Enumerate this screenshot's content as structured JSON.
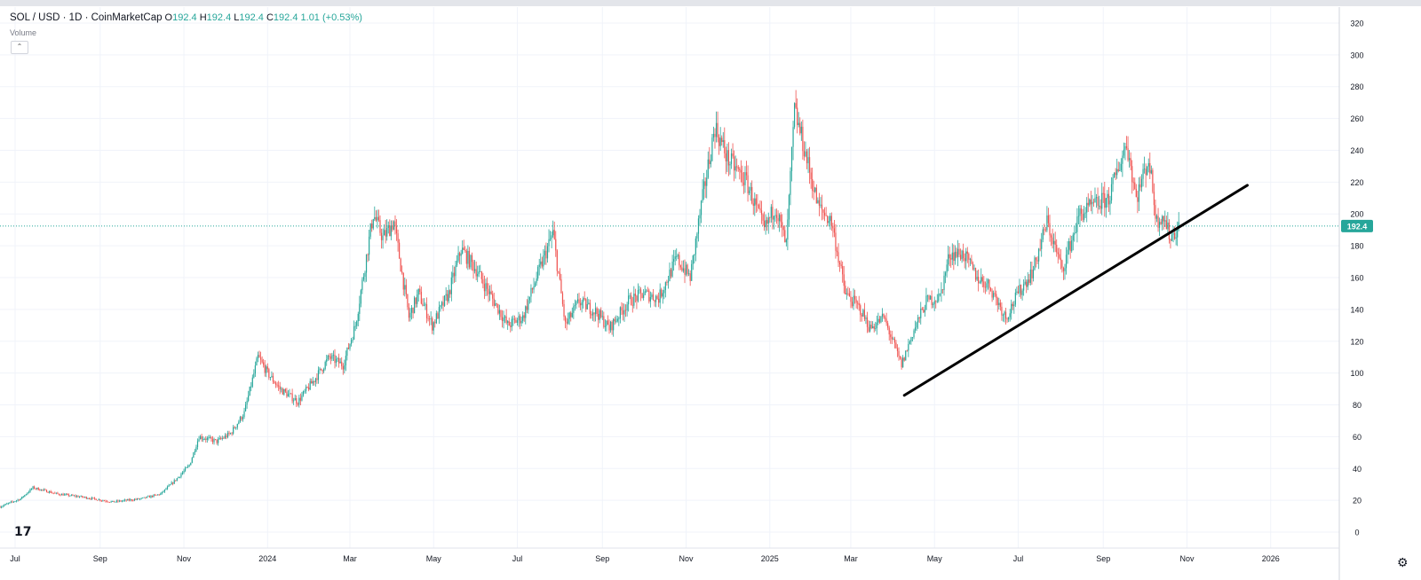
{
  "header": {
    "symbol": "SOL / USD · 1D · CoinMarketCap",
    "open_label": "O",
    "open": "192.4",
    "high_label": "H",
    "high": "192.4",
    "low_label": "L",
    "low": "192.4",
    "close_label": "C",
    "close": "192.4",
    "change": "1.01 (+0.53%)",
    "volume_label": "Volume",
    "collapse_glyph": "⌃"
  },
  "branding": {
    "logo_text": "17",
    "settings_icon": "gear-icon"
  },
  "colors": {
    "up": "#26a69a",
    "down": "#ef5350",
    "price_line": "#26a69a",
    "trend": "#000000",
    "grid": "#f0f3fa"
  },
  "chart_data": {
    "type": "candlestick",
    "title": "SOL / USD · 1D · CoinMarketCap",
    "x_range": [
      "2023-06-20",
      "2026-02-20"
    ],
    "y_range": [
      -10,
      330
    ],
    "grid": true,
    "y_ticks": [
      0,
      20,
      40,
      60,
      80,
      100,
      120,
      140,
      160,
      180,
      200,
      220,
      240,
      260,
      280,
      300,
      320
    ],
    "x_ticks": [
      {
        "label": "Jul",
        "date": "2023-07-01"
      },
      {
        "label": "Sep",
        "date": "2023-09-01"
      },
      {
        "label": "Nov",
        "date": "2023-11-01"
      },
      {
        "label": "2024",
        "date": "2024-01-01"
      },
      {
        "label": "Mar",
        "date": "2024-03-01"
      },
      {
        "label": "May",
        "date": "2024-05-01"
      },
      {
        "label": "Jul",
        "date": "2024-07-01"
      },
      {
        "label": "Sep",
        "date": "2024-09-01"
      },
      {
        "label": "Nov",
        "date": "2024-11-01"
      },
      {
        "label": "2025",
        "date": "2025-01-01"
      },
      {
        "label": "Mar",
        "date": "2025-03-01"
      },
      {
        "label": "May",
        "date": "2025-05-01"
      },
      {
        "label": "Jul",
        "date": "2025-07-01"
      },
      {
        "label": "Sep",
        "date": "2025-09-01"
      },
      {
        "label": "Nov",
        "date": "2025-11-01"
      },
      {
        "label": "2026",
        "date": "2026-01-01"
      }
    ],
    "current_price": 192.4,
    "current_price_label": "192.4",
    "price_path": [
      [
        "2023-06-20",
        16
      ],
      [
        "2023-07-05",
        21
      ],
      [
        "2023-07-14",
        28
      ],
      [
        "2023-08-01",
        24
      ],
      [
        "2023-08-20",
        22
      ],
      [
        "2023-09-10",
        19
      ],
      [
        "2023-10-01",
        21
      ],
      [
        "2023-10-15",
        24
      ],
      [
        "2023-10-25",
        32
      ],
      [
        "2023-11-05",
        42
      ],
      [
        "2023-11-12",
        60
      ],
      [
        "2023-11-25",
        57
      ],
      [
        "2023-12-05",
        62
      ],
      [
        "2023-12-15",
        75
      ],
      [
        "2023-12-25",
        110
      ],
      [
        "2024-01-01",
        100
      ],
      [
        "2024-01-10",
        90
      ],
      [
        "2024-01-23",
        82
      ],
      [
        "2024-02-05",
        97
      ],
      [
        "2024-02-15",
        110
      ],
      [
        "2024-02-25",
        105
      ],
      [
        "2024-03-05",
        130
      ],
      [
        "2024-03-18",
        200
      ],
      [
        "2024-03-25",
        185
      ],
      [
        "2024-04-02",
        195
      ],
      [
        "2024-04-13",
        135
      ],
      [
        "2024-04-20",
        150
      ],
      [
        "2024-04-30",
        130
      ],
      [
        "2024-05-12",
        150
      ],
      [
        "2024-05-21",
        178
      ],
      [
        "2024-06-01",
        165
      ],
      [
        "2024-06-12",
        148
      ],
      [
        "2024-06-24",
        130
      ],
      [
        "2024-07-05",
        135
      ],
      [
        "2024-07-15",
        160
      ],
      [
        "2024-07-27",
        188
      ],
      [
        "2024-08-05",
        130
      ],
      [
        "2024-08-15",
        145
      ],
      [
        "2024-08-28",
        138
      ],
      [
        "2024-09-06",
        128
      ],
      [
        "2024-09-20",
        145
      ],
      [
        "2024-10-01",
        150
      ],
      [
        "2024-10-12",
        147
      ],
      [
        "2024-10-25",
        172
      ],
      [
        "2024-11-04",
        160
      ],
      [
        "2024-11-12",
        205
      ],
      [
        "2024-11-22",
        255
      ],
      [
        "2024-12-01",
        235
      ],
      [
        "2024-12-15",
        220
      ],
      [
        "2024-12-28",
        190
      ],
      [
        "2025-01-05",
        205
      ],
      [
        "2025-01-13",
        180
      ],
      [
        "2025-01-19",
        265
      ],
      [
        "2025-01-25",
        245
      ],
      [
        "2025-02-05",
        205
      ],
      [
        "2025-02-15",
        195
      ],
      [
        "2025-02-25",
        150
      ],
      [
        "2025-03-08",
        140
      ],
      [
        "2025-03-15",
        128
      ],
      [
        "2025-03-25",
        135
      ],
      [
        "2025-04-07",
        105
      ],
      [
        "2025-04-15",
        125
      ],
      [
        "2025-04-25",
        145
      ],
      [
        "2025-05-05",
        148
      ],
      [
        "2025-05-12",
        175
      ],
      [
        "2025-05-22",
        175
      ],
      [
        "2025-06-01",
        160
      ],
      [
        "2025-06-10",
        155
      ],
      [
        "2025-06-22",
        135
      ],
      [
        "2025-07-01",
        150
      ],
      [
        "2025-07-12",
        165
      ],
      [
        "2025-07-22",
        195
      ],
      [
        "2025-08-02",
        165
      ],
      [
        "2025-08-15",
        200
      ],
      [
        "2025-08-25",
        205
      ],
      [
        "2025-09-05",
        210
      ],
      [
        "2025-09-18",
        245
      ],
      [
        "2025-09-25",
        210
      ],
      [
        "2025-10-04",
        235
      ],
      [
        "2025-10-10",
        195
      ],
      [
        "2025-10-14",
        200
      ],
      [
        "2025-10-20",
        185
      ],
      [
        "2025-10-26",
        192
      ]
    ],
    "annotations": [
      {
        "type": "trendline",
        "from": [
          "2025-04-09",
          86
        ],
        "to": [
          "2025-12-15",
          218
        ]
      }
    ]
  }
}
